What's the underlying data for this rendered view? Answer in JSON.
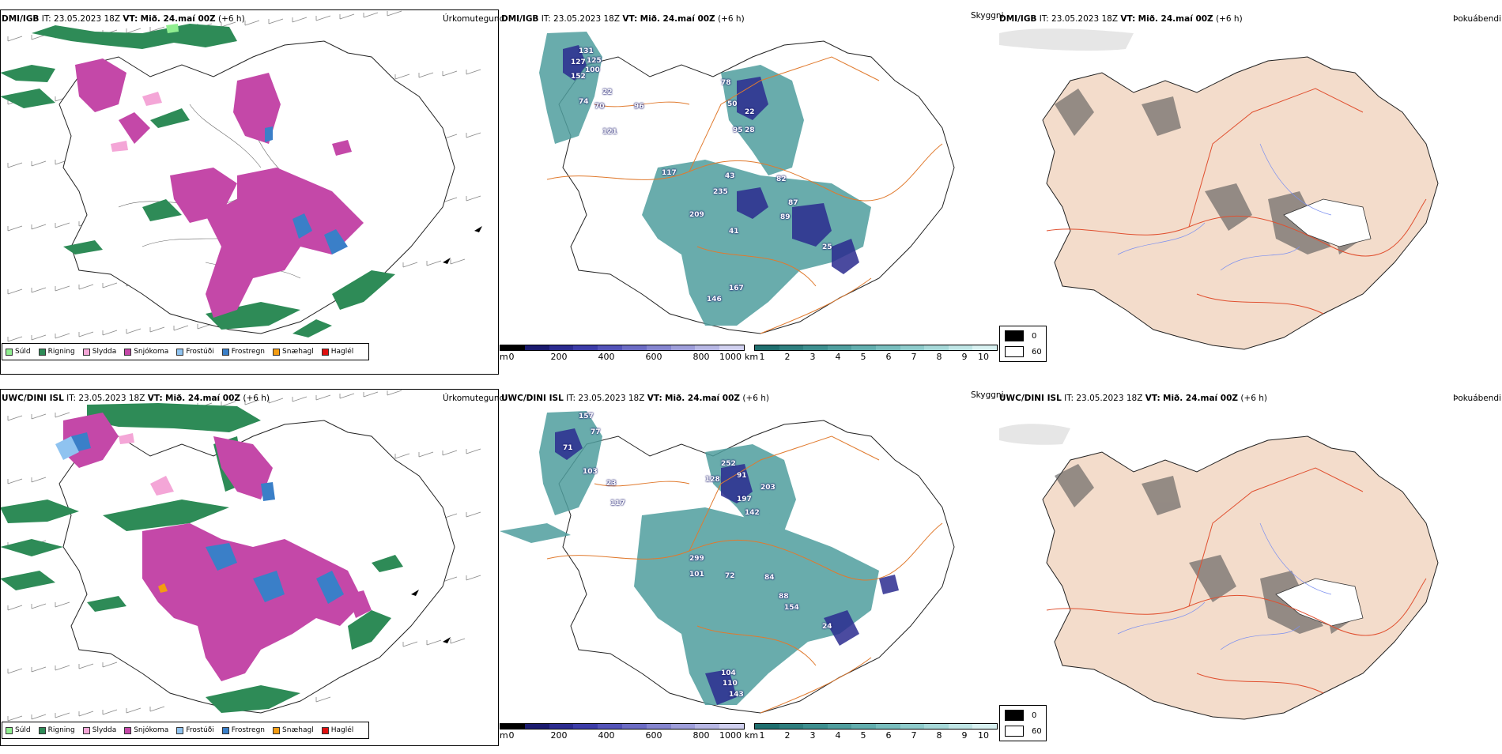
{
  "rows": [
    {
      "model": "DMI/IGB",
      "it_label": "IT:",
      "it_value": "23.05.2023 18Z",
      "vt_label": "VT:",
      "vt_value": "Mið. 24.maí 00Z",
      "lead": "(+6 h)"
    },
    {
      "model": "UWC/DINI ISL",
      "it_label": "IT:",
      "it_value": "23.05.2023 18Z",
      "vt_label": "VT:",
      "vt_value": "Mið. 24.maí 00Z",
      "lead": "(+6 h)"
    }
  ],
  "panel_titles": {
    "precip_type": "Úrkomutegund",
    "cloud_base": "Skyggni",
    "fog": "Þokuábendi"
  },
  "precip_legend": [
    {
      "label": "Súld",
      "color": "#90ee90"
    },
    {
      "label": "Rigning",
      "color": "#2e8b57"
    },
    {
      "label": "Slydda",
      "color": "#f4a6d7"
    },
    {
      "label": "Snjókoma",
      "color": "#c448a8"
    },
    {
      "label": "Frostúði",
      "color": "#8fc3f0"
    },
    {
      "label": "Frostregn",
      "color": "#3a7fc8"
    },
    {
      "label": "Snæhagl",
      "color": "#f39c12"
    },
    {
      "label": "Haglél",
      "color": "#e01010"
    }
  ],
  "ceiling_bar": {
    "unit": "m",
    "ticks": [
      "0",
      "200",
      "400",
      "600",
      "800",
      "1000"
    ],
    "colors": [
      "#000000",
      "#1a1a6e",
      "#2b2b8f",
      "#3c3ca8",
      "#5353b8",
      "#6c6cc4",
      "#8585cf",
      "#9e9eda",
      "#b7b7e4",
      "#d0d0ef"
    ]
  },
  "visibility_bar": {
    "unit": "km",
    "ticks": [
      "1",
      "2",
      "3",
      "4",
      "5",
      "6",
      "7",
      "8",
      "9",
      "10"
    ],
    "colors": [
      "#1f6f6f",
      "#2e7f7f",
      "#3d8f8f",
      "#4f9e9e",
      "#62aeae",
      "#78bdbd",
      "#8ecbcb",
      "#a6d8d8",
      "#bfe5e5",
      "#d8f1f1"
    ]
  },
  "fog_legend": [
    "0",
    "60"
  ],
  "ceiling_labels": {
    "top": [
      "131",
      "127",
      "125",
      "100",
      "152",
      "22",
      "74",
      "70",
      "121",
      "96",
      "78",
      "50",
      "22",
      "95",
      "28",
      "43",
      "117",
      "235",
      "82",
      "87",
      "89",
      "209",
      "41",
      "25",
      "167",
      "146"
    ],
    "bottom": [
      "157",
      "77",
      "71",
      "103",
      "117",
      "23",
      "252",
      "128",
      "91",
      "197",
      "203",
      "142",
      "299",
      "101",
      "72",
      "84",
      "88",
      "154",
      "24",
      "104",
      "110",
      "143"
    ]
  }
}
